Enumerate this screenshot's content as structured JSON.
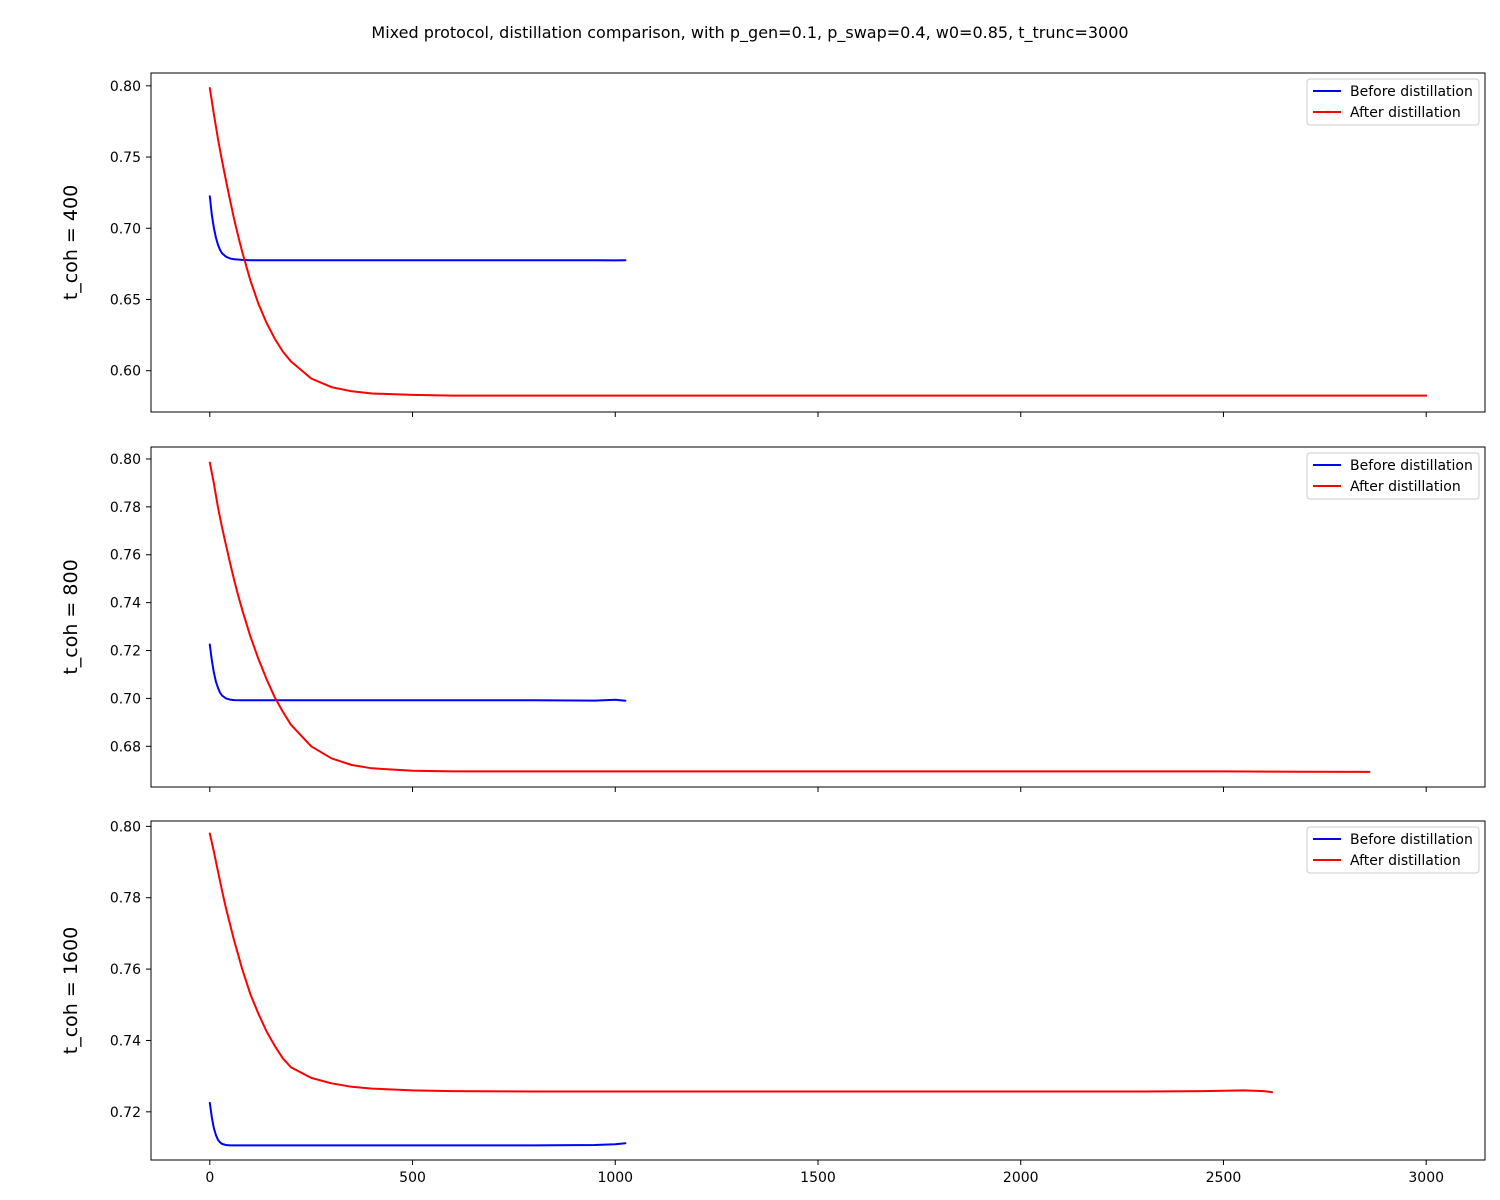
{
  "figure": {
    "title": "Mixed protocol, distillation comparison, with p_gen=0.1, p_swap=0.4, w0=0.85, t_trunc=3000"
  },
  "chart_data": [
    {
      "type": "line",
      "ylabel": "t_coh = 400",
      "xlim": [
        -145,
        3145
      ],
      "ylim": [
        0.571,
        0.809
      ],
      "yticks": [
        0.6,
        0.65,
        0.7,
        0.75,
        0.8
      ],
      "yticks_labels": [
        "0.60",
        "0.65",
        "0.70",
        "0.75",
        "0.80"
      ],
      "xticks": [
        0,
        500,
        1000,
        1500,
        2000,
        2500,
        3000
      ],
      "xtick_labels_visible": false,
      "legend": "top-right",
      "series": [
        {
          "name": "Before distillation",
          "color": "#0000ff",
          "x": [
            0,
            5,
            10,
            15,
            20,
            25,
            30,
            40,
            50,
            60,
            80,
            100,
            150,
            200,
            400,
            600,
            800,
            950,
            1000,
            1025
          ],
          "y": [
            0.7225,
            0.7095,
            0.7005,
            0.6935,
            0.6885,
            0.685,
            0.6825,
            0.68,
            0.6788,
            0.6782,
            0.6778,
            0.6776,
            0.6775,
            0.6775,
            0.6775,
            0.6775,
            0.6775,
            0.6776,
            0.6774,
            0.6776
          ]
        },
        {
          "name": "After distillation",
          "color": "#ff0000",
          "x": [
            0,
            10,
            20,
            30,
            40,
            50,
            60,
            70,
            80,
            100,
            120,
            140,
            160,
            180,
            200,
            250,
            300,
            350,
            400,
            500,
            600,
            800,
            1000,
            1500,
            2000,
            2500,
            3000
          ],
          "y": [
            0.7985,
            0.7805,
            0.763,
            0.7475,
            0.7335,
            0.7195,
            0.7065,
            0.6945,
            0.6835,
            0.6635,
            0.647,
            0.6335,
            0.6225,
            0.6135,
            0.6065,
            0.5945,
            0.5885,
            0.5855,
            0.584,
            0.583,
            0.5825,
            0.5825,
            0.5825,
            0.5825,
            0.5825,
            0.5825,
            0.5825
          ]
        }
      ]
    },
    {
      "type": "line",
      "ylabel": "t_coh = 800",
      "xlim": [
        -145,
        3145
      ],
      "ylim": [
        0.663,
        0.805
      ],
      "yticks": [
        0.68,
        0.7,
        0.72,
        0.74,
        0.76,
        0.78,
        0.8
      ],
      "yticks_labels": [
        "0.68",
        "0.70",
        "0.72",
        "0.74",
        "0.76",
        "0.78",
        "0.80"
      ],
      "xticks": [
        0,
        500,
        1000,
        1500,
        2000,
        2500,
        3000
      ],
      "xtick_labels_visible": false,
      "legend": "top-right",
      "series": [
        {
          "name": "Before distillation",
          "color": "#0000ff",
          "x": [
            0,
            5,
            10,
            15,
            20,
            25,
            30,
            40,
            50,
            60,
            80,
            100,
            150,
            200,
            400,
            600,
            800,
            950,
            1000,
            1025
          ],
          "y": [
            0.7225,
            0.716,
            0.711,
            0.707,
            0.7045,
            0.7025,
            0.7012,
            0.7,
            0.6995,
            0.6993,
            0.6992,
            0.6992,
            0.6992,
            0.6992,
            0.6992,
            0.6992,
            0.6992,
            0.6991,
            0.6994,
            0.699
          ]
        },
        {
          "name": "After distillation",
          "color": "#ff0000",
          "x": [
            0,
            10,
            20,
            30,
            40,
            50,
            60,
            70,
            80,
            100,
            120,
            140,
            160,
            180,
            200,
            250,
            300,
            350,
            400,
            500,
            600,
            800,
            1000,
            1500,
            2000,
            2500,
            2700,
            2860
          ],
          "y": [
            0.7985,
            0.79,
            0.78,
            0.7715,
            0.764,
            0.7565,
            0.7495,
            0.743,
            0.737,
            0.726,
            0.7165,
            0.708,
            0.7005,
            0.6945,
            0.689,
            0.68,
            0.675,
            0.6722,
            0.6708,
            0.6698,
            0.6695,
            0.6695,
            0.6695,
            0.6695,
            0.6695,
            0.6695,
            0.6694,
            0.6693
          ]
        }
      ]
    },
    {
      "type": "line",
      "ylabel": "t_coh = 1600",
      "xlim": [
        -145,
        3145
      ],
      "ylim": [
        0.7065,
        0.8015
      ],
      "yticks": [
        0.72,
        0.74,
        0.76,
        0.78,
        0.8
      ],
      "yticks_labels": [
        "0.72",
        "0.74",
        "0.76",
        "0.78",
        "0.80"
      ],
      "xticks": [
        0,
        500,
        1000,
        1500,
        2000,
        2500,
        3000
      ],
      "xtick_labels": [
        "0",
        "500",
        "1000",
        "1500",
        "2000",
        "2500",
        "3000"
      ],
      "xtick_labels_visible": true,
      "legend": "top-right",
      "series": [
        {
          "name": "Before distillation",
          "color": "#0000ff",
          "x": [
            0,
            5,
            10,
            15,
            20,
            25,
            30,
            40,
            50,
            60,
            80,
            100,
            150,
            200,
            400,
            600,
            800,
            950,
            1000,
            1025
          ],
          "y": [
            0.7225,
            0.7185,
            0.7155,
            0.7135,
            0.7122,
            0.7115,
            0.711,
            0.7107,
            0.7106,
            0.7106,
            0.7106,
            0.7106,
            0.7106,
            0.7106,
            0.7106,
            0.7106,
            0.7106,
            0.7107,
            0.7109,
            0.7112
          ]
        },
        {
          "name": "After distillation",
          "color": "#ff0000",
          "x": [
            0,
            10,
            20,
            30,
            40,
            50,
            60,
            70,
            80,
            100,
            120,
            140,
            160,
            180,
            200,
            250,
            300,
            350,
            400,
            500,
            600,
            800,
            1000,
            1500,
            2000,
            2300,
            2450,
            2550,
            2600,
            2620
          ],
          "y": [
            0.798,
            0.793,
            0.7875,
            0.782,
            0.777,
            0.7725,
            0.768,
            0.764,
            0.76,
            0.753,
            0.7475,
            0.7425,
            0.7385,
            0.735,
            0.7325,
            0.7295,
            0.728,
            0.727,
            0.7265,
            0.726,
            0.7258,
            0.7257,
            0.7257,
            0.7257,
            0.7257,
            0.7257,
            0.7258,
            0.726,
            0.7258,
            0.7255
          ]
        }
      ]
    }
  ]
}
